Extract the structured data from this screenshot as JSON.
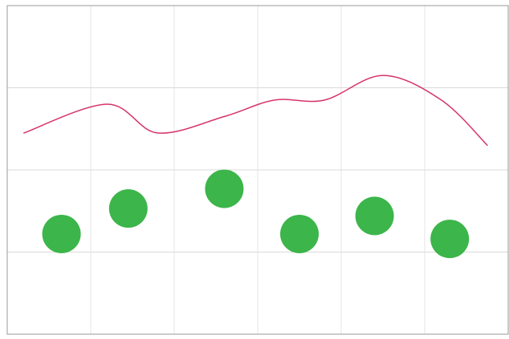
{
  "chart_data": {
    "type": "line",
    "title": "",
    "xlabel": "",
    "ylabel": "",
    "grid": true,
    "legend": "none",
    "xlim": [
      0,
      6
    ],
    "ylim": [
      0,
      4
    ],
    "series": [
      {
        "type": "line",
        "color": "#d6336c",
        "x": [
          0.2,
          1.2,
          1.8,
          2.6,
          3.2,
          3.8,
          4.5,
          5.2,
          5.75
        ],
        "y": [
          2.45,
          2.8,
          2.45,
          2.65,
          2.85,
          2.85,
          3.15,
          2.85,
          2.3
        ]
      },
      {
        "type": "scatter",
        "color": "#3cb54a",
        "x": [
          0.65,
          1.45,
          2.6,
          3.5,
          4.4,
          5.3
        ],
        "y": [
          1.22,
          1.53,
          1.77,
          1.22,
          1.44,
          1.16
        ]
      }
    ]
  }
}
